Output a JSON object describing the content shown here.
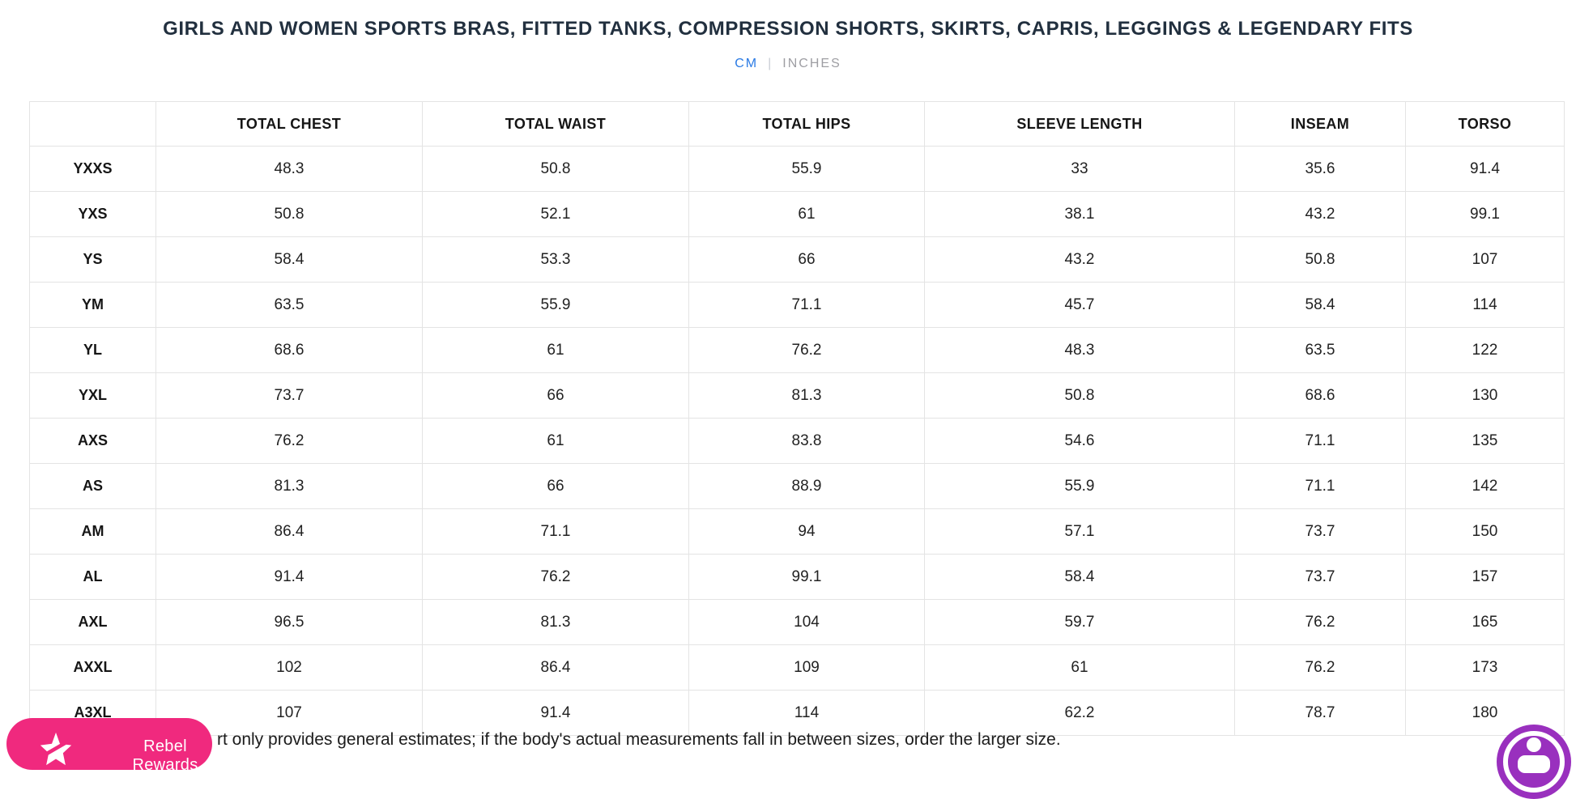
{
  "page": {
    "title": "GIRLS AND WOMEN SPORTS BRAS, FITTED TANKS, COMPRESSION SHORTS, SKIRTS, CAPRIS, LEGGINGS & LEGENDARY FITS",
    "note_visible": "rt only provides general estimates; if the body's actual measurements fall in between sizes, order the larger size."
  },
  "unit_toggle": {
    "cm_label": "CM",
    "separator": "|",
    "inches_label": "INCHES",
    "active_color": "#2a7ae4",
    "inactive_color": "#9e9ea3"
  },
  "table": {
    "columns": [
      "",
      "TOTAL CHEST",
      "TOTAL WAIST",
      "TOTAL HIPS",
      "SLEEVE LENGTH",
      "INSEAM",
      "TORSO"
    ],
    "rows": [
      {
        "size": "YXXS",
        "values": [
          "48.3",
          "50.8",
          "55.9",
          "33",
          "35.6",
          "91.4"
        ]
      },
      {
        "size": "YXS",
        "values": [
          "50.8",
          "52.1",
          "61",
          "38.1",
          "43.2",
          "99.1"
        ]
      },
      {
        "size": "YS",
        "values": [
          "58.4",
          "53.3",
          "66",
          "43.2",
          "50.8",
          "107"
        ]
      },
      {
        "size": "YM",
        "values": [
          "63.5",
          "55.9",
          "71.1",
          "45.7",
          "58.4",
          "114"
        ]
      },
      {
        "size": "YL",
        "values": [
          "68.6",
          "61",
          "76.2",
          "48.3",
          "63.5",
          "122"
        ]
      },
      {
        "size": "YXL",
        "values": [
          "73.7",
          "66",
          "81.3",
          "50.8",
          "68.6",
          "130"
        ]
      },
      {
        "size": "AXS",
        "values": [
          "76.2",
          "61",
          "83.8",
          "54.6",
          "71.1",
          "135"
        ]
      },
      {
        "size": "AS",
        "values": [
          "81.3",
          "66",
          "88.9",
          "55.9",
          "71.1",
          "142"
        ]
      },
      {
        "size": "AM",
        "values": [
          "86.4",
          "71.1",
          "94",
          "57.1",
          "73.7",
          "150"
        ]
      },
      {
        "size": "AL",
        "values": [
          "91.4",
          "76.2",
          "99.1",
          "58.4",
          "73.7",
          "157"
        ]
      },
      {
        "size": "AXL",
        "values": [
          "96.5",
          "81.3",
          "104",
          "59.7",
          "76.2",
          "165"
        ]
      },
      {
        "size": "AXXL",
        "values": [
          "102",
          "86.4",
          "109",
          "61",
          "76.2",
          "173"
        ]
      },
      {
        "size": "A3XL",
        "values": [
          "107",
          "91.4",
          "114",
          "62.2",
          "78.7",
          "180"
        ]
      }
    ]
  },
  "rewards_button": {
    "label": "Rebel Rewards",
    "color": "#f0297e"
  },
  "chat_widget": {
    "color": "#9930be"
  }
}
